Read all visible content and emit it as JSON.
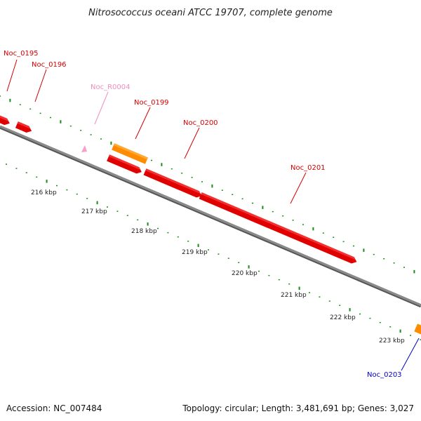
{
  "title": "Nitrosococcus oceani ATCC 19707, complete genome",
  "footer": {
    "accession": "Accession: NC_007484",
    "summary": "Topology: circular; Length: 3,481,691 bp; Genes: 3,027"
  },
  "colors": {
    "cds": "#ff0000",
    "other_gene": "#ff8c00",
    "rna": "#f5a0c8",
    "label_red": "#d40000",
    "label_pink": "#ef8fbf",
    "label_blue": "#0000c8",
    "backbone": "#7a7a7a",
    "tick_marks": "#1a8a1a"
  },
  "genes": [
    {
      "id": "g195",
      "label": "Noc_0195",
      "color": "label_red"
    },
    {
      "id": "g196",
      "label": "Noc_0196",
      "color": "label_red"
    },
    {
      "id": "gR0004",
      "label": "Noc_R0004",
      "color": "label_pink"
    },
    {
      "id": "g199",
      "label": "Noc_0199",
      "color": "label_red"
    },
    {
      "id": "g200",
      "label": "Noc_0200",
      "color": "label_red"
    },
    {
      "id": "g201",
      "label": "Noc_0201",
      "color": "label_red"
    },
    {
      "id": "g203",
      "label": "Noc_0203",
      "color": "label_blue"
    }
  ],
  "scale_labels": [
    "216 kbp",
    "217 kbp",
    "218 kbp",
    "219 kbp",
    "220 kbp",
    "221 kbp",
    "222 kbp",
    "223 kbp"
  ]
}
